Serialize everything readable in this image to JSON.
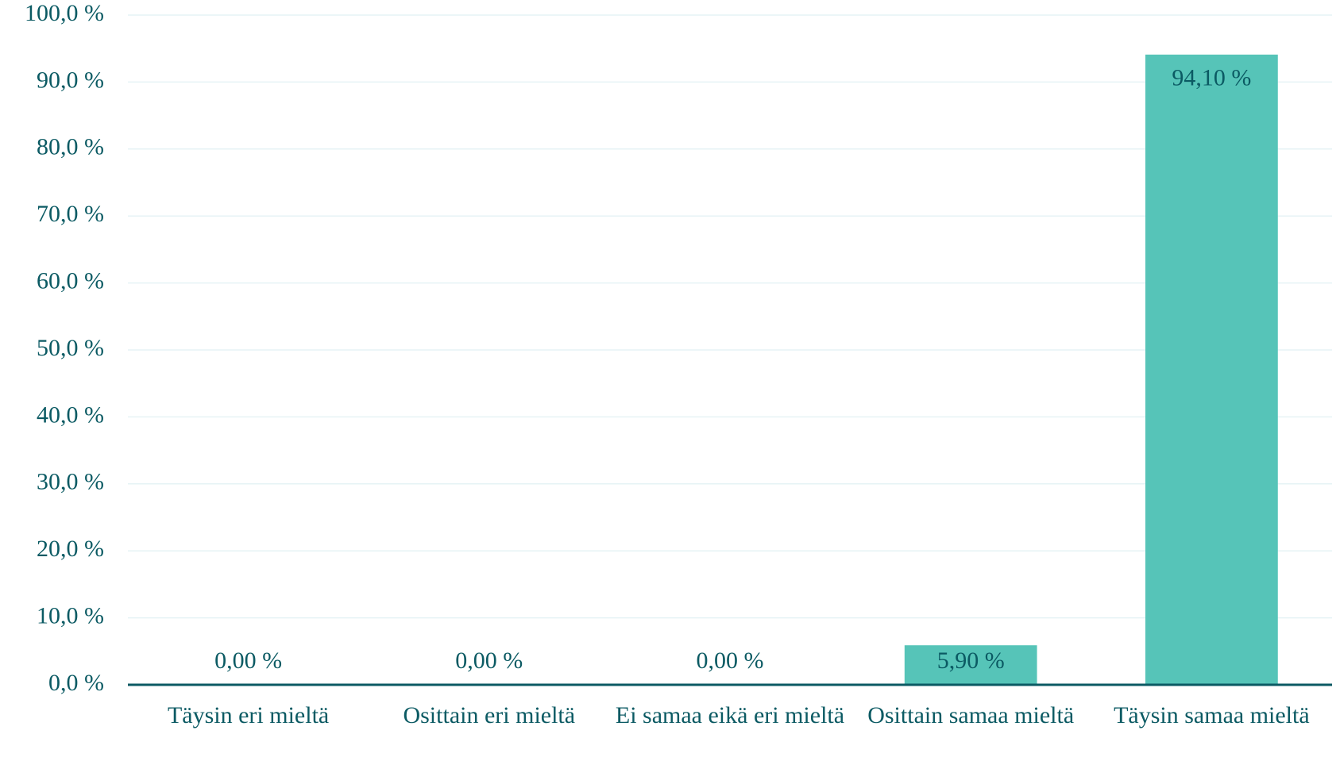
{
  "chart_data": {
    "type": "bar",
    "categories": [
      "Täysin eri mieltä",
      "Osittain eri mieltä",
      "Ei samaa eikä eri mieltä",
      "Osittain samaa mieltä",
      "Täysin samaa mieltä"
    ],
    "values": [
      0,
      0,
      0,
      5.9,
      94.1
    ],
    "value_labels": [
      "0,00 %",
      "0,00 %",
      "0,00 %",
      "5,90 %",
      "94,10 %"
    ],
    "color": "#56c4b8",
    "ylim": [
      0,
      100
    ],
    "yticks": [
      {
        "value": 0,
        "label": "0,0 %"
      },
      {
        "value": 10,
        "label": "10,0 %"
      },
      {
        "value": 20,
        "label": "20,0 %"
      },
      {
        "value": 30,
        "label": "30,0 %"
      },
      {
        "value": 40,
        "label": "40,0 %"
      },
      {
        "value": 50,
        "label": "50,0 %"
      },
      {
        "value": 60,
        "label": "60,0 %"
      },
      {
        "value": 70,
        "label": "70,0 %"
      },
      {
        "value": 80,
        "label": "80,0 %"
      },
      {
        "value": 90,
        "label": "90,0 %"
      },
      {
        "value": 100,
        "label": "100,0 %"
      }
    ],
    "grid": true
  }
}
